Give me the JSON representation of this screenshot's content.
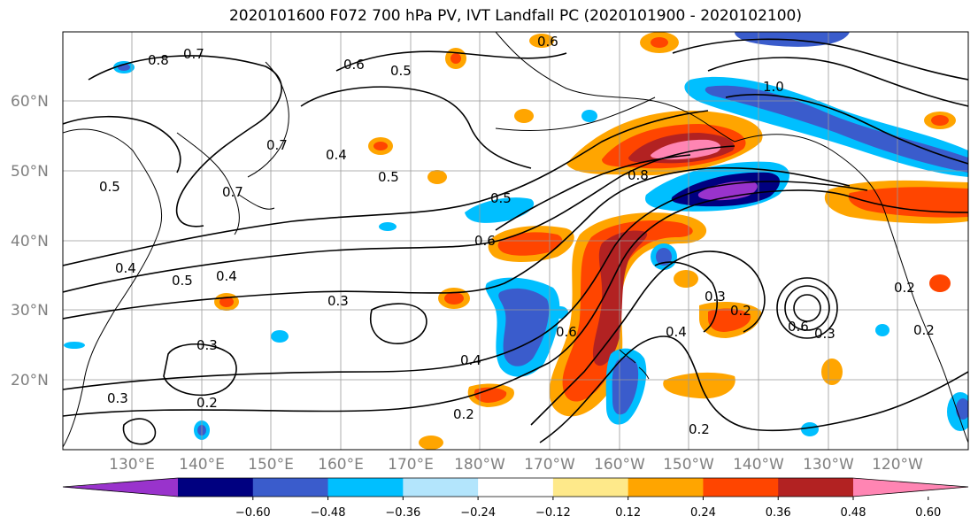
{
  "title": "2020101600 F072 700 hPa PV, IVT Landfall PC (2020101900 - 2020102100)",
  "lat_labels": [
    "60°N",
    "50°N",
    "40°N",
    "30°N",
    "20°N"
  ],
  "lon_labels": [
    "130°E",
    "140°E",
    "150°E",
    "160°E",
    "170°E",
    "180°W",
    "170°W",
    "160°W",
    "150°W",
    "140°W",
    "130°W",
    "120°W"
  ],
  "contour_labels": [
    "0.8",
    "0.7",
    "0.6",
    "0.5",
    "0.6",
    "1.0",
    "0.7",
    "0.4",
    "0.5",
    "0.7",
    "0.5",
    "0.8",
    "0.5",
    "0.6",
    "0.4",
    "0.4",
    "0.5",
    "0.3",
    "0.3",
    "0.3",
    "0.2",
    "0.4",
    "0.2",
    "0.6",
    "0.3",
    "0.2",
    "0.4",
    "0.6",
    "0.3",
    "0.2",
    "0.2",
    "0.2"
  ],
  "colorbar": {
    "ticks": [
      "−0.60",
      "−0.48",
      "−0.36",
      "−0.24",
      "−0.12",
      "0.12",
      "0.24",
      "0.36",
      "0.48",
      "0.60"
    ],
    "colors": [
      "#9933cc",
      "#000080",
      "#3a5ccc",
      "#00bfff",
      "#b3e5fc",
      "#ffffff",
      "#fee98a",
      "#ffa500",
      "#ff4500",
      "#b22222",
      "#ff85b3"
    ]
  }
}
